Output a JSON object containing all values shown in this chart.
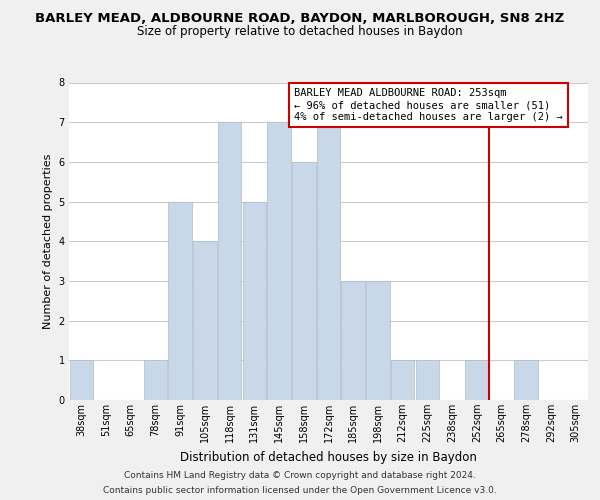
{
  "title": "BARLEY MEAD, ALDBOURNE ROAD, BAYDON, MARLBOROUGH, SN8 2HZ",
  "subtitle": "Size of property relative to detached houses in Baydon",
  "xlabel": "Distribution of detached houses by size in Baydon",
  "ylabel": "Number of detached properties",
  "bins": [
    "38sqm",
    "51sqm",
    "65sqm",
    "78sqm",
    "91sqm",
    "105sqm",
    "118sqm",
    "131sqm",
    "145sqm",
    "158sqm",
    "172sqm",
    "185sqm",
    "198sqm",
    "212sqm",
    "225sqm",
    "238sqm",
    "252sqm",
    "265sqm",
    "278sqm",
    "292sqm",
    "305sqm"
  ],
  "values": [
    1,
    0,
    0,
    1,
    5,
    4,
    7,
    5,
    7,
    6,
    7,
    3,
    3,
    1,
    1,
    0,
    1,
    0,
    1,
    0,
    0
  ],
  "bar_color": "#c8d8e8",
  "vline_index": 16,
  "vline_color": "#cc0000",
  "annotation_text": "BARLEY MEAD ALDBOURNE ROAD: 253sqm\n← 96% of detached houses are smaller (51)\n4% of semi-detached houses are larger (2) →",
  "annotation_box_color": "#ffffff",
  "annotation_box_edge": "#cc0000",
  "ylim": [
    0,
    8
  ],
  "yticks": [
    0,
    1,
    2,
    3,
    4,
    5,
    6,
    7,
    8
  ],
  "footer_line1": "Contains HM Land Registry data © Crown copyright and database right 2024.",
  "footer_line2": "Contains public sector information licensed under the Open Government Licence v3.0.",
  "bg_color": "#f0f0f0",
  "plot_bg_color": "#ffffff",
  "grid_color": "#cccccc",
  "title_fontsize": 9.5,
  "subtitle_fontsize": 8.5,
  "xlabel_fontsize": 8.5,
  "ylabel_fontsize": 8,
  "tick_fontsize": 7,
  "annotation_fontsize": 7.5,
  "footer_fontsize": 6.5
}
